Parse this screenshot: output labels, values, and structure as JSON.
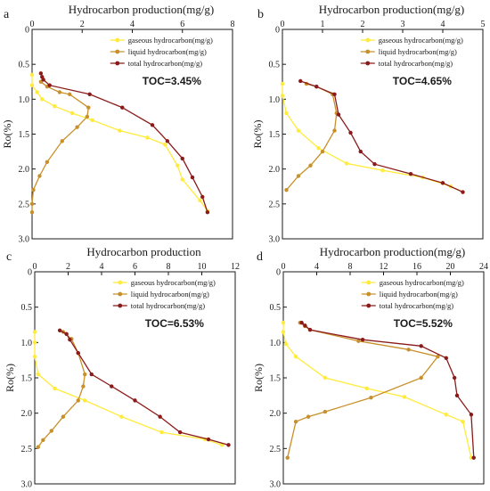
{
  "chart_data": [
    {
      "type": "line",
      "panel": "a",
      "title": "Hydrocarbon production(mg/g)",
      "ylabel": "Ro(%)",
      "xlim": [
        0,
        8
      ],
      "ylim": [
        0,
        3
      ],
      "xticks": [
        "0",
        "2",
        "4",
        "6",
        "8"
      ],
      "yticks": [
        "0",
        "0.5",
        "1.0",
        "1.5",
        "2.0",
        "2.5",
        "3.0"
      ],
      "annotation": "TOC=3.45%",
      "series": [
        {
          "name": "gaseous hydrocarbon(mg/g)",
          "color": "#ffeb3b",
          "points": [
            [
              0,
              0.65
            ],
            [
              0,
              0.8
            ],
            [
              0.2,
              0.9
            ],
            [
              0.4,
              1.0
            ],
            [
              0.9,
              1.1
            ],
            [
              1.6,
              1.2
            ],
            [
              2.4,
              1.3
            ],
            [
              3.5,
              1.45
            ],
            [
              4.6,
              1.55
            ],
            [
              5.3,
              1.65
            ],
            [
              5.8,
              1.95
            ],
            [
              6.0,
              2.15
            ],
            [
              6.7,
              2.45
            ],
            [
              7.0,
              2.6
            ]
          ]
        },
        {
          "name": "liquid hydrocarbon(mg/g)",
          "color": "#c8902a",
          "points": [
            [
              0.35,
              0.75
            ],
            [
              0.6,
              0.82
            ],
            [
              1.1,
              0.9
            ],
            [
              1.5,
              0.93
            ],
            [
              2.25,
              1.12
            ],
            [
              2.2,
              1.25
            ],
            [
              1.8,
              1.4
            ],
            [
              1.2,
              1.6
            ],
            [
              0.6,
              1.9
            ],
            [
              0.3,
              2.1
            ],
            [
              0.05,
              2.3
            ],
            [
              0,
              2.5
            ],
            [
              0,
              2.62
            ]
          ]
        },
        {
          "name": "total hydrocarbon(mg/g)",
          "color": "#8b1a1a",
          "points": [
            [
              0.35,
              0.63
            ],
            [
              0.4,
              0.68
            ],
            [
              0.45,
              0.72
            ],
            [
              0.7,
              0.8
            ],
            [
              2.3,
              0.93
            ],
            [
              3.6,
              1.12
            ],
            [
              4.8,
              1.37
            ],
            [
              5.4,
              1.6
            ],
            [
              6.0,
              1.85
            ],
            [
              6.4,
              2.12
            ],
            [
              6.8,
              2.4
            ],
            [
              7.0,
              2.62
            ]
          ]
        }
      ]
    },
    {
      "type": "line",
      "panel": "b",
      "title": "Hydrocarbon production(mg/g)",
      "ylabel": "Ro(%)",
      "xlim": [
        0,
        5
      ],
      "ylim": [
        0,
        3
      ],
      "xticks": [
        "0",
        "1",
        "2",
        "3",
        "4",
        "5"
      ],
      "yticks": [
        "0",
        "0.5",
        "1.0",
        "1.5",
        "2.0",
        "2.5",
        "3.0"
      ],
      "annotation": "TOC=4.65%",
      "series": [
        {
          "name": "gaseous hydrocarbon(mg/g)",
          "color": "#ffeb3b",
          "points": [
            [
              0,
              0.78
            ],
            [
              0,
              0.95
            ],
            [
              0.1,
              1.2
            ],
            [
              0.4,
              1.45
            ],
            [
              0.9,
              1.7
            ],
            [
              1.6,
              1.92
            ],
            [
              2.5,
              2.02
            ],
            [
              3.5,
              2.12
            ],
            [
              4.2,
              2.25
            ],
            [
              4.5,
              2.33
            ]
          ]
        },
        {
          "name": "liquid hydrocarbon(mg/g)",
          "color": "#c8902a",
          "points": [
            [
              0.6,
              0.78
            ],
            [
              0.85,
              0.82
            ],
            [
              1.25,
              0.93
            ],
            [
              1.35,
              1.2
            ],
            [
              1.3,
              1.45
            ],
            [
              1.0,
              1.75
            ],
            [
              0.7,
              1.95
            ],
            [
              0.4,
              2.1
            ],
            [
              0.1,
              2.3
            ]
          ]
        },
        {
          "name": "total hydrocarbon(mg/g)",
          "color": "#8b1a1a",
          "points": [
            [
              0.45,
              0.74
            ],
            [
              0.85,
              0.82
            ],
            [
              1.3,
              0.93
            ],
            [
              1.4,
              1.22
            ],
            [
              1.7,
              1.48
            ],
            [
              1.95,
              1.75
            ],
            [
              2.3,
              1.93
            ],
            [
              3.2,
              2.07
            ],
            [
              4.0,
              2.2
            ],
            [
              4.5,
              2.33
            ]
          ]
        }
      ]
    },
    {
      "type": "line",
      "panel": "c",
      "title": "Hydrocarbon production",
      "ylabel": "Ro(%)",
      "xlim": [
        0,
        12
      ],
      "ylim": [
        0,
        3
      ],
      "xticks": [
        "0",
        "4",
        "8",
        "12"
      ],
      "extra_xticks": [
        "2",
        "6",
        "10"
      ],
      "yticks": [
        "0",
        "0.5",
        "1.0",
        "1.5",
        "2.0",
        "2.5",
        "3.0"
      ],
      "annotation": "TOC=6.53%",
      "series": [
        {
          "name": "gaseous hydrocarbon(mg/g)",
          "color": "#ffeb3b",
          "points": [
            [
              0,
              0.85
            ],
            [
              0,
              1.0
            ],
            [
              0,
              1.2
            ],
            [
              0.2,
              1.45
            ],
            [
              1.2,
              1.65
            ],
            [
              3.0,
              1.82
            ],
            [
              5.2,
              2.05
            ],
            [
              7.6,
              2.27
            ],
            [
              10.2,
              2.37
            ],
            [
              11.2,
              2.45
            ]
          ]
        },
        {
          "name": "liquid hydrocarbon(mg/g)",
          "color": "#c8902a",
          "points": [
            [
              1.7,
              0.85
            ],
            [
              2.2,
              0.95
            ],
            [
              2.6,
              1.15
            ],
            [
              3.0,
              1.45
            ],
            [
              2.9,
              1.62
            ],
            [
              2.6,
              1.82
            ],
            [
              1.7,
              2.05
            ],
            [
              1.0,
              2.25
            ],
            [
              0.5,
              2.38
            ],
            [
              0.2,
              2.48
            ]
          ]
        },
        {
          "name": "total hydrocarbon(mg/g)",
          "color": "#8b1a1a",
          "points": [
            [
              1.5,
              0.83
            ],
            [
              1.9,
              0.88
            ],
            [
              2.1,
              0.96
            ],
            [
              2.6,
              1.15
            ],
            [
              3.4,
              1.45
            ],
            [
              4.6,
              1.62
            ],
            [
              6.0,
              1.82
            ],
            [
              7.5,
              2.05
            ],
            [
              8.7,
              2.27
            ],
            [
              10.4,
              2.37
            ],
            [
              11.6,
              2.45
            ]
          ]
        }
      ]
    },
    {
      "type": "line",
      "panel": "d",
      "title": "Hydrocarbon production(mg/g)",
      "ylabel": "Ro(%)",
      "xlim": [
        0,
        24
      ],
      "ylim": [
        0,
        3
      ],
      "xticks": [
        "0",
        "4",
        "8",
        "12",
        "16",
        "20",
        "24"
      ],
      "yticks": [
        "0",
        "0.5",
        "1.0",
        "1.5",
        "2.0",
        "2.5",
        "3.0"
      ],
      "annotation": "TOC=5.52%",
      "series": [
        {
          "name": "gaseous hydrocarbon(mg/g)",
          "color": "#ffeb3b",
          "points": [
            [
              0,
              0.72
            ],
            [
              0,
              0.85
            ],
            [
              0.3,
              1.02
            ],
            [
              1.5,
              1.2
            ],
            [
              5.0,
              1.5
            ],
            [
              10.0,
              1.65
            ],
            [
              14.5,
              1.77
            ],
            [
              19.5,
              2.02
            ],
            [
              21.5,
              2.12
            ],
            [
              22.5,
              2.63
            ]
          ]
        },
        {
          "name": "liquid hydrocarbon(mg/g)",
          "color": "#c8902a",
          "points": [
            [
              2.0,
              0.72
            ],
            [
              2.6,
              0.77
            ],
            [
              3.2,
              0.82
            ],
            [
              9.0,
              0.98
            ],
            [
              15.0,
              1.1
            ],
            [
              18.5,
              1.2
            ],
            [
              16.5,
              1.5
            ],
            [
              10.5,
              1.78
            ],
            [
              5.0,
              1.98
            ],
            [
              3.0,
              2.05
            ],
            [
              1.5,
              2.12
            ],
            [
              0.5,
              2.63
            ]
          ]
        },
        {
          "name": "total hydrocarbon(mg/g)",
          "color": "#8b1a1a",
          "points": [
            [
              2.2,
              0.72
            ],
            [
              2.6,
              0.76
            ],
            [
              3.2,
              0.82
            ],
            [
              9.5,
              0.96
            ],
            [
              16.5,
              1.05
            ],
            [
              19.5,
              1.22
            ],
            [
              20.5,
              1.5
            ],
            [
              20.8,
              1.75
            ],
            [
              22.5,
              2.02
            ],
            [
              22.8,
              2.63
            ]
          ]
        }
      ]
    }
  ]
}
